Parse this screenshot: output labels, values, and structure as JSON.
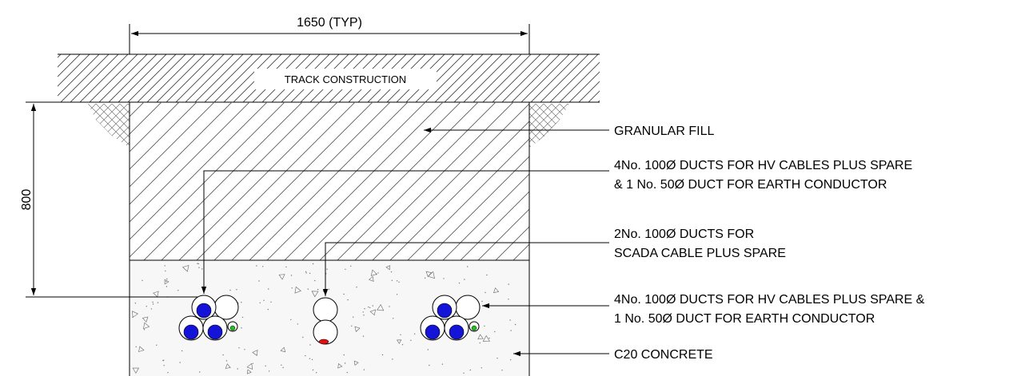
{
  "dimensions": {
    "width_label": "1650 (TYP)",
    "depth_label": "800"
  },
  "layers": {
    "top_label": "TRACK CONSTRUCTION"
  },
  "callouts": [
    {
      "id": "granular",
      "lines": [
        "GRANULAR FILL"
      ]
    },
    {
      "id": "hv-left",
      "lines": [
        "4No. 100Ø DUCTS FOR HV CABLES PLUS SPARE",
        "& 1 No. 50Ø DUCT FOR EARTH CONDUCTOR"
      ]
    },
    {
      "id": "scada",
      "lines": [
        "2No. 100Ø DUCTS FOR",
        "SCADA CABLE PLUS SPARE"
      ]
    },
    {
      "id": "hv-right",
      "lines": [
        "4No. 100Ø DUCTS FOR HV CABLES PLUS SPARE &",
        "1 No. 50Ø DUCT FOR EARTH CONDUCTOR"
      ]
    },
    {
      "id": "concrete",
      "lines": [
        "C20 CONCRETE"
      ]
    }
  ],
  "colors": {
    "hv_cable": "#1414d8",
    "earth_conductor": "#1fc01f",
    "scada_cable": "#e01010",
    "hatch": "#444444",
    "outline": "#000000"
  }
}
